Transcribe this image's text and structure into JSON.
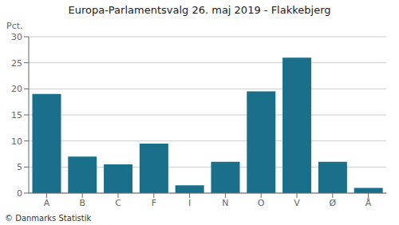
{
  "chart_data": {
    "type": "bar",
    "title": "Europa-Parlamentsvalg 26. maj 2019 - Flakkebjerg",
    "categories": [
      "A",
      "B",
      "C",
      "F",
      "I",
      "N",
      "O",
      "V",
      "Ø",
      "Å"
    ],
    "values": [
      19.0,
      7.0,
      5.5,
      9.5,
      1.5,
      6.0,
      19.5,
      26.0,
      6.0,
      1.0
    ],
    "color": "#1a6f8a",
    "ylabel": "Pct.",
    "ylim": [
      0,
      30
    ],
    "yticks": [
      0,
      5,
      10,
      15,
      20,
      25,
      30
    ],
    "grid": true,
    "footer": "© Danmarks Statistik"
  }
}
